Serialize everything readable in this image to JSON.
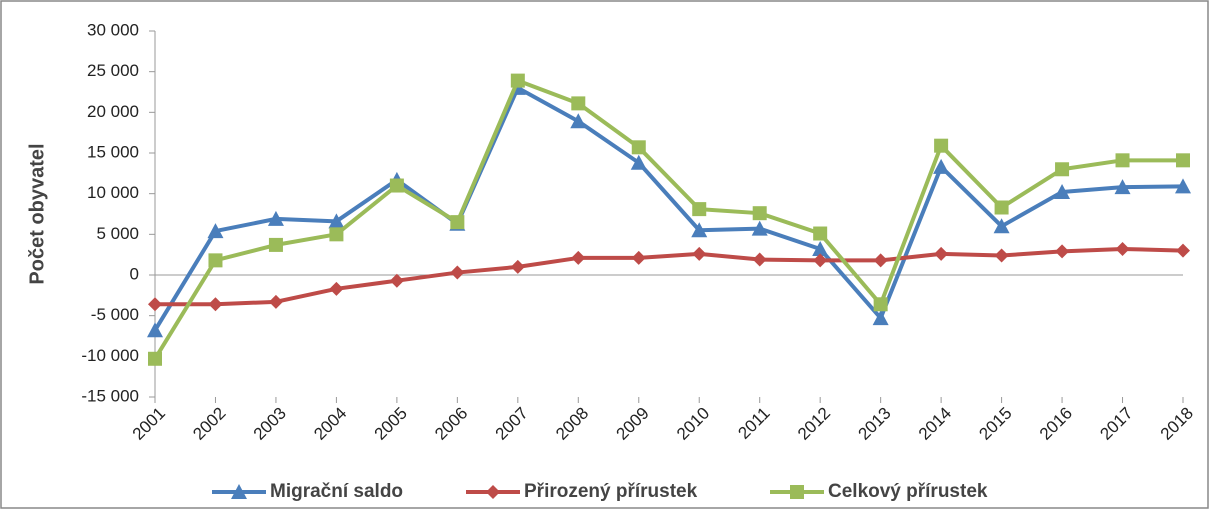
{
  "chart_data": {
    "type": "line",
    "y_label": "Počet obyvatel",
    "categories": [
      "2001",
      "2002",
      "2003",
      "2004",
      "2005",
      "2006",
      "2007",
      "2008",
      "2009",
      "2010",
      "2011",
      "2012",
      "2013",
      "2014",
      "2015",
      "2016",
      "2017",
      "2018"
    ],
    "series": [
      {
        "name": "Migrační saldo",
        "color": "#4a7ebb",
        "marker": "triangle",
        "values": [
          -6800,
          5400,
          6900,
          6600,
          11700,
          6300,
          23000,
          18900,
          13800,
          5500,
          5700,
          3200,
          -5300,
          13300,
          6000,
          10200,
          10800,
          10900
        ]
      },
      {
        "name": "Přirozený přírustek",
        "color": "#be4b48",
        "marker": "diamond",
        "values": [
          -3600,
          -3600,
          -3300,
          -1700,
          -700,
          300,
          1000,
          2100,
          2100,
          2600,
          1900,
          1800,
          1800,
          2600,
          2400,
          2900,
          3200,
          3000
        ]
      },
      {
        "name": "Celkový přírustek",
        "color": "#9bbb59",
        "marker": "square",
        "values": [
          -10300,
          1800,
          3700,
          5000,
          11000,
          6500,
          23900,
          21100,
          15700,
          8100,
          7600,
          5100,
          -3600,
          15900,
          8300,
          13000,
          14100,
          14100
        ]
      }
    ],
    "ylim": [
      -15000,
      30000
    ],
    "yticks": [
      {
        "value": -15000,
        "label": "-15 000"
      },
      {
        "value": -10000,
        "label": "-10 000"
      },
      {
        "value": -5000,
        "label": "-5 000"
      },
      0,
      {
        "value": 5000,
        "label": "5 000"
      },
      {
        "value": 10000,
        "label": "10 000"
      },
      {
        "value": 15000,
        "label": "15 000"
      },
      {
        "value": 20000,
        "label": "20 000"
      },
      {
        "value": 25000,
        "label": "25 000"
      },
      {
        "value": 30000,
        "label": "30 000"
      }
    ],
    "legend": "bottom"
  }
}
